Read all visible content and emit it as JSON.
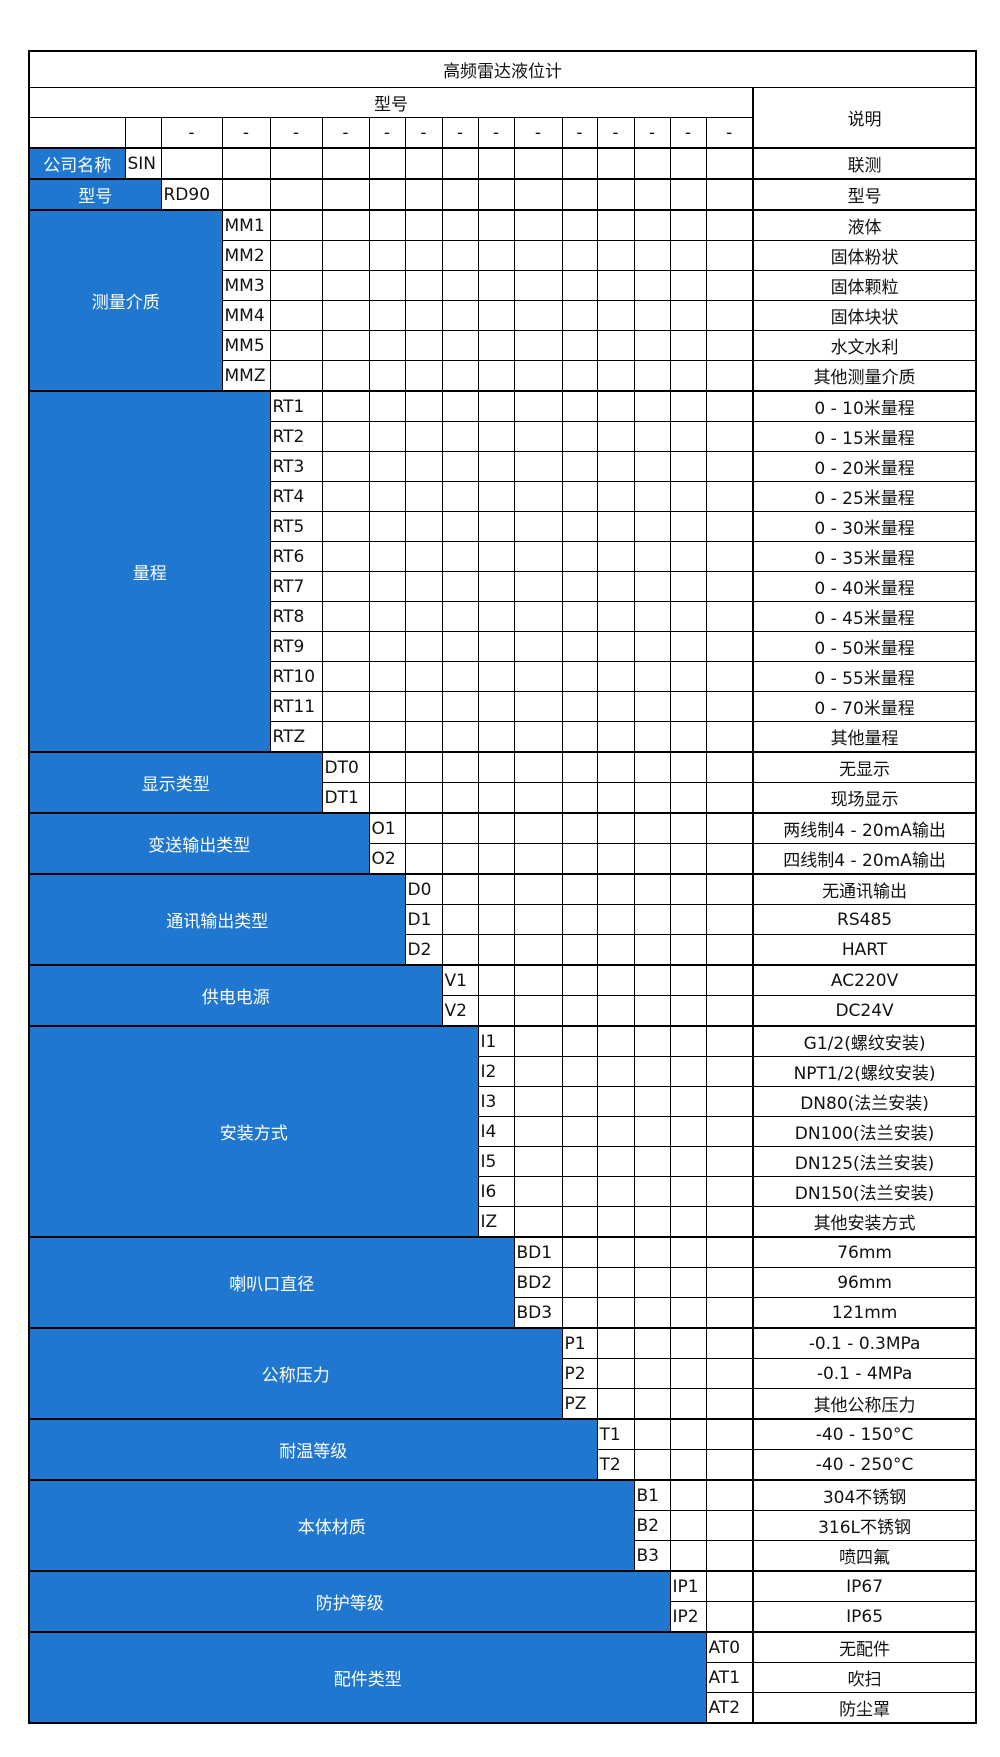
{
  "title": "高频雷达液位计",
  "header": {
    "model_label": "型号",
    "desc_label": "说明",
    "separator": "-"
  },
  "colors": {
    "label_bg": "#2077d0",
    "label_text": "#ffffff",
    "border": "#000000"
  },
  "groups": [
    {
      "label": "公司名称",
      "items": [
        {
          "code": "SIN",
          "desc": "联测"
        }
      ]
    },
    {
      "label": "型号",
      "items": [
        {
          "code": "RD90",
          "desc": "型号"
        }
      ]
    },
    {
      "label": "测量介质",
      "items": [
        {
          "code": "MM1",
          "desc": "液体"
        },
        {
          "code": "MM2",
          "desc": "固体粉状"
        },
        {
          "code": "MM3",
          "desc": "固体颗粒"
        },
        {
          "code": "MM4",
          "desc": "固体块状"
        },
        {
          "code": "MM5",
          "desc": "水文水利"
        },
        {
          "code": "MMZ",
          "desc": "其他测量介质"
        }
      ]
    },
    {
      "label": "量程",
      "items": [
        {
          "code": "RT1",
          "desc": "0 - 10米量程"
        },
        {
          "code": "RT2",
          "desc": "0 - 15米量程"
        },
        {
          "code": "RT3",
          "desc": "0 - 20米量程"
        },
        {
          "code": "RT4",
          "desc": "0 - 25米量程"
        },
        {
          "code": "RT5",
          "desc": "0 - 30米量程"
        },
        {
          "code": "RT6",
          "desc": "0 - 35米量程"
        },
        {
          "code": "RT7",
          "desc": "0 - 40米量程"
        },
        {
          "code": "RT8",
          "desc": "0 - 45米量程"
        },
        {
          "code": "RT9",
          "desc": "0 - 50米量程"
        },
        {
          "code": "RT10",
          "desc": "0 - 55米量程"
        },
        {
          "code": "RT11",
          "desc": "0 - 70米量程"
        },
        {
          "code": "RTZ",
          "desc": "其他量程"
        }
      ]
    },
    {
      "label": "显示类型",
      "items": [
        {
          "code": "DT0",
          "desc": "无显示"
        },
        {
          "code": "DT1",
          "desc": "现场显示"
        }
      ]
    },
    {
      "label": "变送输出类型",
      "items": [
        {
          "code": "O1",
          "desc": "两线制4 - 20mA输出"
        },
        {
          "code": "O2",
          "desc": "四线制4 - 20mA输出"
        }
      ]
    },
    {
      "label": "通讯输出类型",
      "items": [
        {
          "code": "D0",
          "desc": "无通讯输出"
        },
        {
          "code": "D1",
          "desc": "RS485"
        },
        {
          "code": "D2",
          "desc": "HART"
        }
      ]
    },
    {
      "label": "供电电源",
      "items": [
        {
          "code": "V1",
          "desc": "AC220V"
        },
        {
          "code": "V2",
          "desc": "DC24V"
        }
      ]
    },
    {
      "label": "安装方式",
      "items": [
        {
          "code": "I1",
          "desc": "G1/2(螺纹安装)"
        },
        {
          "code": "I2",
          "desc": "NPT1/2(螺纹安装)"
        },
        {
          "code": "I3",
          "desc": "DN80(法兰安装)"
        },
        {
          "code": "I4",
          "desc": "DN100(法兰安装)"
        },
        {
          "code": "I5",
          "desc": "DN125(法兰安装)"
        },
        {
          "code": "I6",
          "desc": "DN150(法兰安装)"
        },
        {
          "code": "IZ",
          "desc": "其他安装方式"
        }
      ]
    },
    {
      "label": "喇叭口直径",
      "items": [
        {
          "code": "BD1",
          "desc": "76mm"
        },
        {
          "code": "BD2",
          "desc": "96mm"
        },
        {
          "code": "BD3",
          "desc": "121mm"
        }
      ]
    },
    {
      "label": "公称压力",
      "items": [
        {
          "code": "P1",
          "desc": "-0.1 - 0.3MPa"
        },
        {
          "code": "P2",
          "desc": "-0.1 - 4MPa"
        },
        {
          "code": "PZ",
          "desc": "其他公称压力"
        }
      ]
    },
    {
      "label": "耐温等级",
      "items": [
        {
          "code": "T1",
          "desc": "-40 - 150°C"
        },
        {
          "code": "T2",
          "desc": "-40 - 250°C"
        }
      ]
    },
    {
      "label": "本体材质",
      "items": [
        {
          "code": "B1",
          "desc": "304不锈钢"
        },
        {
          "code": "B2",
          "desc": "316L不锈钢"
        },
        {
          "code": "B3",
          "desc": "喷四氟"
        }
      ]
    },
    {
      "label": "防护等级",
      "items": [
        {
          "code": "IP1",
          "desc": "IP67"
        },
        {
          "code": "IP2",
          "desc": "IP65"
        }
      ]
    },
    {
      "label": "配件类型",
      "items": [
        {
          "code": "AT0",
          "desc": "无配件"
        },
        {
          "code": "AT1",
          "desc": "吹扫"
        },
        {
          "code": "AT2",
          "desc": "防尘罩"
        }
      ]
    }
  ]
}
